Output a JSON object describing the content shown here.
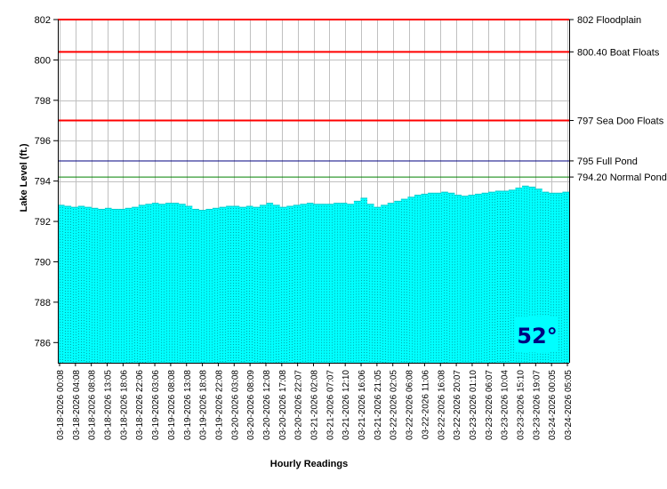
{
  "chart_data": {
    "type": "area",
    "title": "",
    "xlabel": "Hourly Readings",
    "ylabel": "Lake Level (ft.)",
    "ylim": [
      785,
      802
    ],
    "yticks": [
      786,
      788,
      790,
      792,
      794,
      796,
      798,
      800,
      802
    ],
    "grid": true,
    "x_tick_labels": [
      "03-18-2026 00:08",
      "03-18-2026 04:08",
      "03-18-2026 08:08",
      "03-18-2026 13:05",
      "03-18-2026 18:06",
      "03-18-2026 22:06",
      "03-19-2026 03:06",
      "03-19-2026 08:08",
      "03-19-2026 13:08",
      "03-19-2026 18:08",
      "03-19-2026 22:08",
      "03-20-2026 03:08",
      "03-20-2026 08:09",
      "03-20-2026 12:08",
      "03-20-2026 17:08",
      "03-20-2026 22:07",
      "03-21-2026 02:08",
      "03-21-2026 07:07",
      "03-21-2026 12:10",
      "03-21-2026 16:06",
      "03-21-2026 21:05",
      "03-22-2026 02:05",
      "03-22-2026 06:08",
      "03-22-2026 11:06",
      "03-22-2026 16:08",
      "03-22-2026 20:07",
      "03-23-2026 01:10",
      "03-23-2026 06:07",
      "03-23-2026 10:04",
      "03-23-2026 15:10",
      "03-23-2026 19:07",
      "03-24-2026 00:05",
      "03-24-2026 05:05"
    ],
    "series": [
      {
        "fill_color": "#00ffff",
        "values": [
          792.8,
          792.75,
          792.7,
          792.75,
          792.7,
          792.65,
          792.6,
          792.65,
          792.6,
          792.6,
          792.65,
          792.7,
          792.8,
          792.85,
          792.9,
          792.85,
          792.9,
          792.9,
          792.85,
          792.75,
          792.6,
          792.55,
          792.6,
          792.65,
          792.7,
          792.75,
          792.75,
          792.7,
          792.75,
          792.7,
          792.8,
          792.9,
          792.8,
          792.7,
          792.75,
          792.8,
          792.85,
          792.9,
          792.85,
          792.85,
          792.85,
          792.9,
          792.9,
          792.85,
          793.0,
          793.15,
          792.85,
          792.7,
          792.8,
          792.9,
          793.0,
          793.1,
          793.2,
          793.3,
          793.35,
          793.4,
          793.4,
          793.45,
          793.4,
          793.3,
          793.25,
          793.3,
          793.35,
          793.4,
          793.45,
          793.5,
          793.5,
          793.55,
          793.65,
          793.75,
          793.7,
          793.6,
          793.45,
          793.4,
          793.4,
          793.45
        ]
      }
    ],
    "reference_lines": [
      {
        "value": 802,
        "label": "802 Floodplain",
        "color": "#ff0000"
      },
      {
        "value": 800.4,
        "label": "800.40 Boat Floats",
        "color": "#ff0000"
      },
      {
        "value": 797,
        "label": "797 Sea Doo Floats",
        "color": "#ff0000"
      },
      {
        "value": 795,
        "label": "795 Full Pond",
        "color": "#000080"
      },
      {
        "value": 794.2,
        "label": "794.20 Normal Pond",
        "color": "#008000"
      }
    ],
    "annotation": {
      "text": "52°",
      "color": "#000080",
      "background": "#00ffff"
    }
  }
}
